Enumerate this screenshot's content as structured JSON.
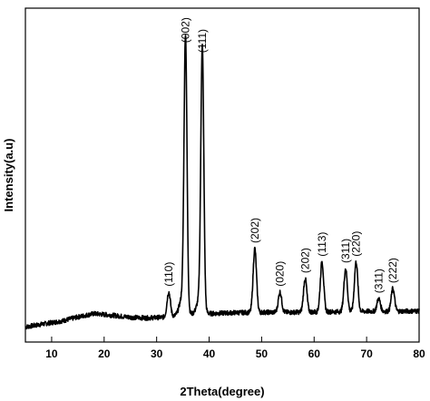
{
  "chart_data": {
    "type": "line",
    "title": "",
    "xlabel": "2Theta(degree)",
    "ylabel": "Intensity(a.u)",
    "xlim": [
      5,
      80
    ],
    "ylim": [
      0,
      100
    ],
    "xticks": [
      10,
      20,
      30,
      40,
      50,
      60,
      70,
      80
    ],
    "xtick_labels": [
      "10",
      "20",
      "30",
      "40",
      "50",
      "60",
      "70",
      "80"
    ],
    "y_tick_labels_shown": false,
    "grid": false,
    "legend": "none",
    "line_color": "#000000",
    "baseline": {
      "x": [
        5,
        8,
        12,
        15,
        18,
        21,
        25,
        28,
        31,
        34,
        36,
        40,
        45,
        50,
        55,
        60,
        65,
        70,
        75,
        80
      ],
      "y": [
        4.5,
        5.3,
        6.3,
        7.5,
        8.5,
        8.1,
        7.4,
        7.2,
        7.4,
        7.8,
        8.2,
        8.5,
        8.8,
        8.9,
        8.9,
        9.0,
        9.1,
        9.2,
        9.2,
        9.3
      ]
    },
    "peaks": [
      {
        "label": "(110)",
        "x": 32.3,
        "y": 15
      },
      {
        "label": "(002)",
        "x": 35.5,
        "y": 88
      },
      {
        "label": "(111)",
        "x": 38.7,
        "y": 85
      },
      {
        "label": "(202)",
        "x": 48.7,
        "y": 28
      },
      {
        "label": "(020)",
        "x": 53.5,
        "y": 15
      },
      {
        "label": "(202)",
        "x": 58.3,
        "y": 19
      },
      {
        "label": "(113)",
        "x": 61.5,
        "y": 24
      },
      {
        "label": "(311)",
        "x": 66.0,
        "y": 22
      },
      {
        "label": "(220)",
        "x": 68.0,
        "y": 24
      },
      {
        "label": "(311)",
        "x": 72.3,
        "y": 13
      },
      {
        "label": "(222)",
        "x": 75.0,
        "y": 16
      }
    ]
  }
}
